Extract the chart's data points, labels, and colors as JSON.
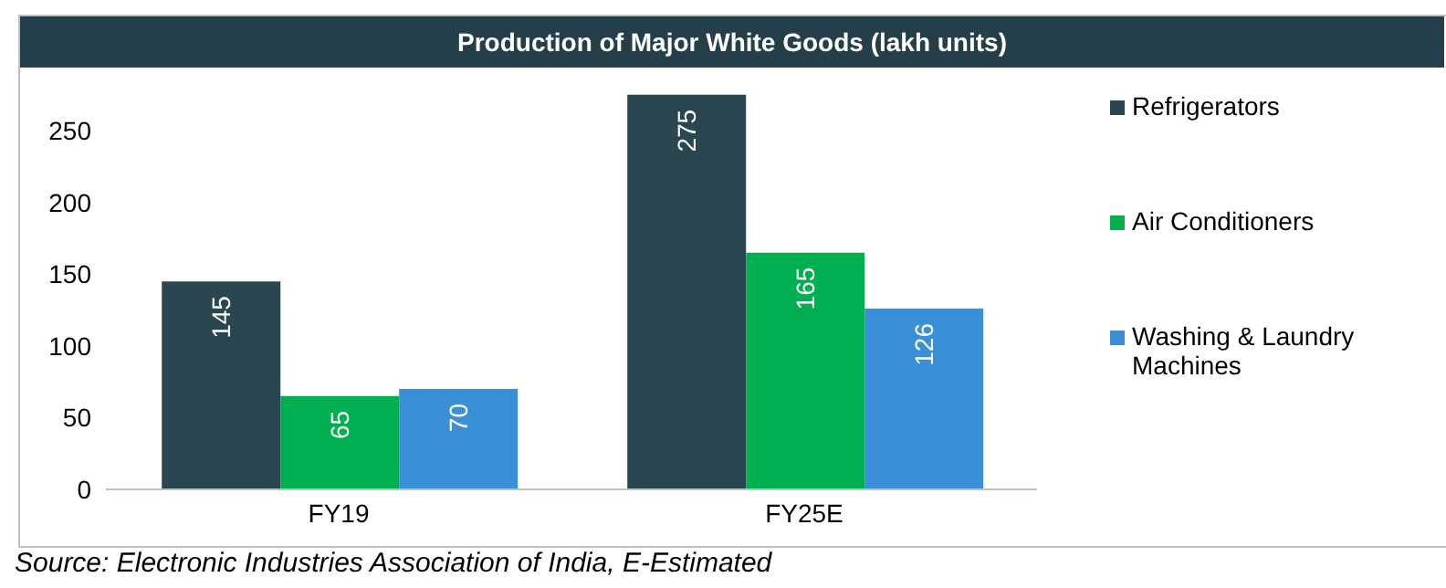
{
  "chart_data": {
    "type": "bar",
    "title": "Production of Major White Goods (lakh units)",
    "categories": [
      "FY19",
      "FY25E"
    ],
    "series": [
      {
        "name": "Refrigerators",
        "color": "#2a4651",
        "values": [
          145,
          275
        ]
      },
      {
        "name": "Air Conditioners",
        "color": "#00b050",
        "values": [
          65,
          165
        ]
      },
      {
        "name": "Washing & Laundry Machines",
        "color": "#3a8fd6",
        "values": [
          70,
          126
        ]
      }
    ],
    "ylim": [
      0,
      280
    ],
    "yticks": [
      0,
      50,
      100,
      150,
      200,
      250
    ],
    "grid": false,
    "legend": "right",
    "data_labels": true,
    "annotations": [
      "Source: Electronic Industries Association of India, E-Estimated"
    ]
  }
}
